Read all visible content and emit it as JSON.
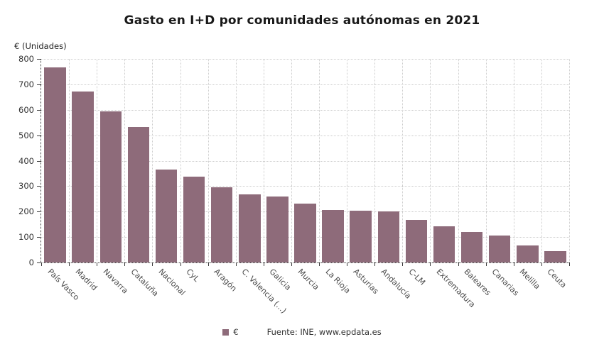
{
  "title": "Gasto en I+D por comunidades autónomas en 2021",
  "y_axis_title": "€ (Unidades)",
  "legend": {
    "series_label": "€",
    "source": "Fuente: INE, www.epdata.es"
  },
  "colors": {
    "bar": "#8e6b7a",
    "grid": "#cccccc",
    "axis": "#3c3c3c",
    "title": "#191919",
    "tick_label": "#333333",
    "category_label": "#4a4a4a"
  },
  "chart_data": {
    "type": "bar",
    "title": "Gasto en I+D por comunidades autónomas en 2021",
    "xlabel": "",
    "ylabel": "€ (Unidades)",
    "ylim": [
      0,
      800
    ],
    "ytick_interval": 100,
    "grid": true,
    "legend_position": "bottom",
    "series_name": "€",
    "categories": [
      "País Vasco",
      "Madrid",
      "Navarra",
      "Cataluña",
      "Nacional",
      "CyL",
      "Aragón",
      "C. Valencia (...)",
      "Galicia",
      "Murcia",
      "La Rioja",
      "Asturias",
      "Andalucía",
      "C-LM",
      "Extremadura",
      "Baleares",
      "Canarias",
      "Melilla",
      "Ceuta"
    ],
    "values": [
      766,
      672,
      593,
      533,
      365,
      336,
      296,
      268,
      258,
      232,
      207,
      204,
      200,
      167,
      142,
      120,
      107,
      68,
      46
    ]
  }
}
